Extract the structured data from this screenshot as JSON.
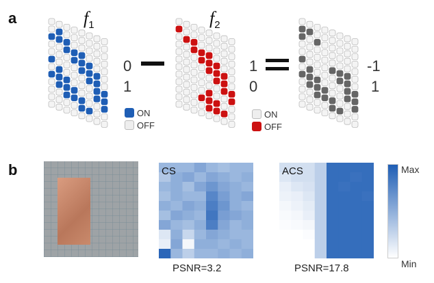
{
  "panel_a": {
    "label": "a",
    "f1": {
      "symbol": "f",
      "sub": "1"
    },
    "f2": {
      "symbol": "f",
      "sub": "2"
    },
    "grid1_values": [
      "0",
      "1"
    ],
    "grid2_values": [
      "1",
      "0"
    ],
    "result_values": [
      "-1",
      "1"
    ],
    "operator_minus": "—",
    "operator_equals": "=",
    "legend1": [
      {
        "label": "ON",
        "color": "#1f5eb5"
      },
      {
        "label": "OFF",
        "color": "#eeeeee"
      }
    ],
    "legend2": [
      {
        "label": "ON",
        "color": "#eeeeee"
      },
      {
        "label": "OFF",
        "color": "#cc1111"
      }
    ],
    "colors": {
      "blue": "#1f5eb5",
      "red": "#cc1111",
      "gray": "#666666",
      "off": "#f4f4f4",
      "outline": "#bbbbbb"
    },
    "pattern1": [
      "00000000",
      "01000000",
      "11100000",
      "00111000",
      "00011100",
      "10001110",
      "01000110",
      "11100011",
      "01110011",
      "00111001",
      "00001100",
      "00000000"
    ],
    "pattern2": [
      "00000000",
      "10000000",
      "01100000",
      "00111000",
      "00011100",
      "00001110",
      "00000110",
      "00000011",
      "00001001",
      "00011100",
      "00001110",
      "00000000"
    ],
    "pattern3": [
      "00000000",
      "11000000",
      "10100000",
      "00000000",
      "00000000",
      "10001110",
      "01000110",
      "11100011",
      "01110011",
      "00111001",
      "00001100",
      "00000000"
    ]
  },
  "panel_b": {
    "label": "b",
    "cs_label": "CS",
    "acs_label": "ACS",
    "cs_psnr": "PSNR=3.2",
    "acs_psnr": "PSNR=17.8",
    "colorbar_max": "Max",
    "colorbar_min": "Min",
    "cs_grid": [
      [
        0.45,
        0.45,
        0.45,
        0.55,
        0.45,
        0.4,
        0.45,
        0.45
      ],
      [
        0.35,
        0.5,
        0.55,
        0.45,
        0.55,
        0.5,
        0.45,
        0.5
      ],
      [
        0.45,
        0.5,
        0.4,
        0.55,
        0.65,
        0.55,
        0.5,
        0.45
      ],
      [
        0.4,
        0.5,
        0.45,
        0.45,
        0.75,
        0.6,
        0.5,
        0.55
      ],
      [
        0.5,
        0.45,
        0.55,
        0.5,
        0.8,
        0.65,
        0.5,
        0.45
      ],
      [
        0.4,
        0.55,
        0.5,
        0.45,
        0.85,
        0.6,
        0.55,
        0.5
      ],
      [
        0.55,
        0.45,
        0.4,
        0.5,
        0.8,
        0.55,
        0.45,
        0.5
      ],
      [
        0.15,
        0.5,
        0.25,
        0.45,
        0.55,
        0.5,
        0.45,
        0.45
      ],
      [
        0.1,
        0.55,
        0.05,
        0.5,
        0.5,
        0.45,
        0.5,
        0.45
      ],
      [
        0.95,
        0.45,
        0.3,
        0.45,
        0.45,
        0.5,
        0.45,
        0.5
      ]
    ],
    "acs_grid": [
      [
        0.2,
        0.2,
        0.2,
        0.3,
        0.9,
        0.9,
        0.9,
        0.9
      ],
      [
        0.15,
        0.2,
        0.2,
        0.3,
        0.9,
        0.9,
        0.88,
        0.9
      ],
      [
        0.1,
        0.15,
        0.18,
        0.3,
        0.9,
        0.88,
        0.9,
        0.9
      ],
      [
        0.08,
        0.1,
        0.15,
        0.3,
        0.9,
        0.9,
        0.9,
        0.88
      ],
      [
        0.05,
        0.08,
        0.12,
        0.3,
        0.9,
        0.9,
        0.9,
        0.9
      ],
      [
        0.03,
        0.05,
        0.1,
        0.3,
        0.9,
        0.9,
        0.9,
        0.9
      ],
      [
        0.02,
        0.03,
        0.05,
        0.3,
        0.9,
        0.9,
        0.9,
        0.9
      ],
      [
        0.0,
        0.0,
        0.02,
        0.3,
        0.9,
        0.9,
        0.9,
        0.9
      ],
      [
        0.0,
        0.0,
        0.0,
        0.3,
        0.9,
        0.9,
        0.9,
        0.9
      ],
      [
        0.0,
        0.0,
        0.0,
        0.3,
        0.9,
        0.9,
        0.9,
        0.9
      ]
    ]
  }
}
